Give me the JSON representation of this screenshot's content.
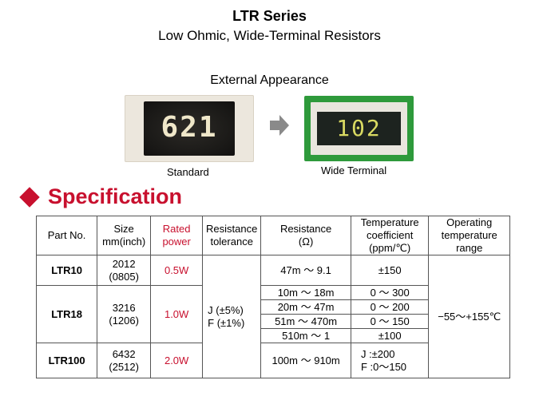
{
  "header": {
    "title": "LTR Series",
    "subtitle": "Low Ohmic, Wide-Terminal Resistors"
  },
  "appearance": {
    "label": "External Appearance",
    "standard": {
      "marking": "621",
      "caption": "Standard"
    },
    "wide": {
      "marking": "102",
      "caption": "Wide Terminal"
    }
  },
  "spec": {
    "heading": "Specification",
    "accent_color": "#c8102e",
    "columns": {
      "part": "Part No.",
      "size": "Size\nmm(inch)",
      "power": "Rated\npower",
      "tolerance": "Resistance\ntolerance",
      "resistance": "Resistance\n(Ω)",
      "tcr": "Temperature\ncoefficient\n(ppm/℃)",
      "temp": "Operating\ntemperature\nrange"
    },
    "tolerance_value": "J (±5%)\nF (±1%)",
    "temp_value": "−55〜+155℃",
    "rows": {
      "ltr10": {
        "part": "LTR10",
        "size": "2012\n(0805)",
        "power": "0.5W",
        "res": "47m 〜 9.1",
        "tcr": "±150"
      },
      "ltr18": {
        "part": "LTR18",
        "size": "3216\n(1206)",
        "power": "1.0W",
        "sub": [
          {
            "res": "10m 〜 18m",
            "tcr": "0 〜 300"
          },
          {
            "res": "20m 〜 47m",
            "tcr": "0 〜 200"
          },
          {
            "res": "51m 〜 470m",
            "tcr": "0 〜 150"
          },
          {
            "res": "510m 〜 1",
            "tcr": "±100"
          }
        ]
      },
      "ltr100": {
        "part": "LTR100",
        "size": "6432\n(2512)",
        "power": "2.0W",
        "res": "100m 〜 910m",
        "tcr": "J :±200\nF :0〜150"
      }
    }
  }
}
